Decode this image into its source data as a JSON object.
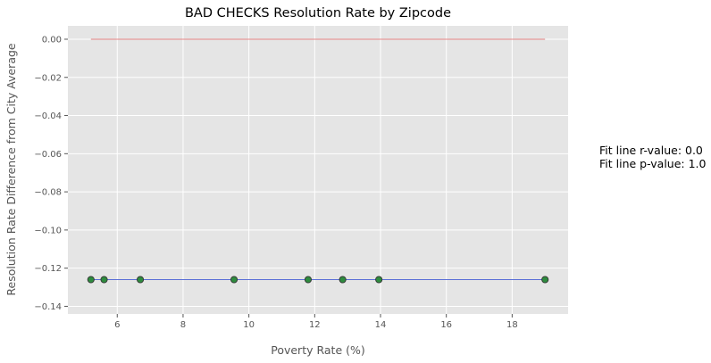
{
  "chart_data": {
    "type": "scatter",
    "title": "BAD CHECKS Resolution Rate by Zipcode",
    "xlabel": "Poverty Rate (%)",
    "ylabel": "Resolution Rate Difference from City Average",
    "xlim": [
      4.5,
      19.7
    ],
    "ylim": [
      -0.144,
      0.007
    ],
    "xticks": [
      6,
      8,
      10,
      12,
      14,
      16,
      18
    ],
    "yticks": [
      0.0,
      -0.02,
      -0.04,
      -0.06,
      -0.08,
      -0.1,
      -0.12,
      -0.14
    ],
    "ytick_labels": [
      "0.00",
      "−0.02",
      "−0.04",
      "−0.06",
      "−0.08",
      "−0.10",
      "−0.12",
      "−0.14"
    ],
    "grid": true,
    "points": [
      {
        "x": 5.2,
        "y": -0.126
      },
      {
        "x": 5.6,
        "y": -0.126
      },
      {
        "x": 6.7,
        "y": -0.126
      },
      {
        "x": 9.55,
        "y": -0.126
      },
      {
        "x": 11.8,
        "y": -0.126
      },
      {
        "x": 12.85,
        "y": -0.126
      },
      {
        "x": 13.95,
        "y": -0.126
      },
      {
        "x": 19.0,
        "y": -0.126
      }
    ],
    "reference_line": {
      "x": [
        5.2,
        19.0
      ],
      "y": [
        0.0,
        0.0
      ]
    },
    "fit_line": {
      "x": [
        5.2,
        19.0
      ],
      "y": [
        -0.126,
        -0.126
      ]
    },
    "annotations": [
      "Fit line r-value: 0.0",
      "Fit line p-value: 1.0"
    ]
  },
  "colors": {
    "panel_background": "#e5e5e5",
    "grid": "#ffffff",
    "marker_fill": "#2e8b3e",
    "marker_edge": "#333333",
    "fit_line": "#5a6fd6",
    "reference_line": "#e06060"
  }
}
